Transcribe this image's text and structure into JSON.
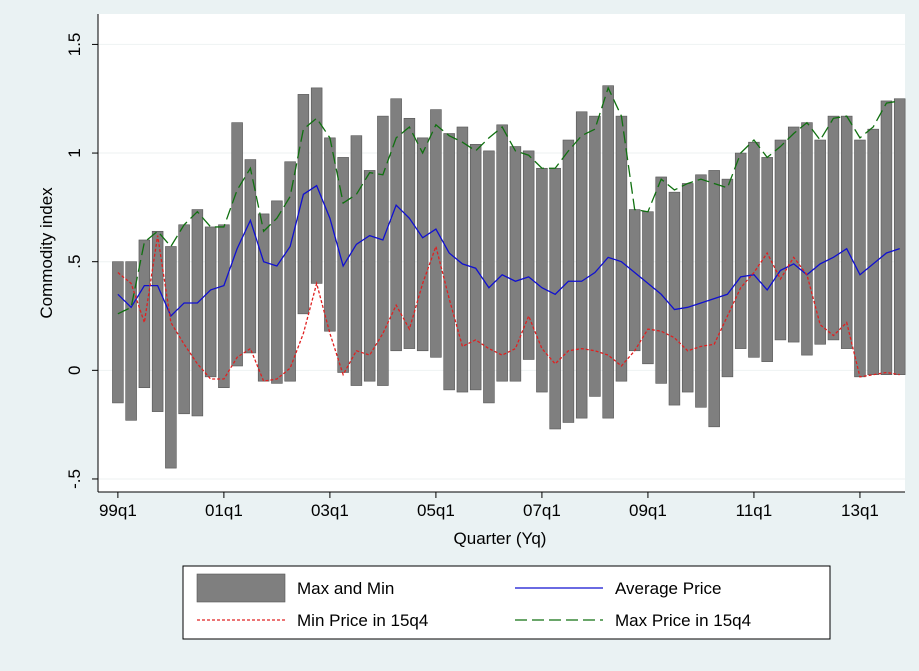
{
  "chart_data": {
    "type": "combo",
    "y_label": "Commodity index",
    "x_label": "Quarter (Yq)",
    "x": [
      156,
      157,
      158,
      159,
      160,
      161,
      162,
      163,
      164,
      165,
      166,
      167,
      168,
      169,
      170,
      171,
      172,
      173,
      174,
      175,
      176,
      177,
      178,
      179,
      180,
      181,
      182,
      183,
      184,
      185,
      186,
      187,
      188,
      189,
      190,
      191,
      192,
      193,
      194,
      195,
      196,
      197,
      198,
      199,
      200,
      201,
      202,
      203,
      204,
      205,
      206,
      207,
      208,
      209,
      210,
      211,
      212,
      213,
      214,
      215
    ],
    "xlim": [
      154.5,
      215.4
    ],
    "xticks": [
      {
        "value": 156,
        "label": "99q1"
      },
      {
        "value": 164,
        "label": "01q1"
      },
      {
        "value": 172,
        "label": "03q1"
      },
      {
        "value": 180,
        "label": "05q1"
      },
      {
        "value": 188,
        "label": "07q1"
      },
      {
        "value": 196,
        "label": "09q1"
      },
      {
        "value": 204,
        "label": "11q1"
      },
      {
        "value": 212,
        "label": "13q1"
      }
    ],
    "ylim": [
      -0.56,
      1.64
    ],
    "yticks": [
      {
        "value": -0.5,
        "label": "-.5"
      },
      0,
      {
        "value": 0.5,
        "label": ".5"
      },
      1,
      1.5
    ],
    "grid": true,
    "series": [
      {
        "name": "Max and Min",
        "type": "rangebar",
        "color": "#7f7f7f",
        "high": [
          0.5,
          0.5,
          0.6,
          0.64,
          0.57,
          0.67,
          0.74,
          0.66,
          0.67,
          1.14,
          0.97,
          0.72,
          0.78,
          0.96,
          1.27,
          1.3,
          1.07,
          0.98,
          1.08,
          0.92,
          1.17,
          1.25,
          1.16,
          1.07,
          1.2,
          1.09,
          1.12,
          1.04,
          1.01,
          1.13,
          1.03,
          1.01,
          0.93,
          0.93,
          1.06,
          1.19,
          1.17,
          1.31,
          1.17,
          0.74,
          0.73,
          0.89,
          0.82,
          0.86,
          0.9,
          0.92,
          0.88,
          1.0,
          1.05,
          0.98,
          1.06,
          1.12,
          1.14,
          1.06,
          1.17,
          1.17,
          1.06,
          1.11,
          1.24,
          1.25
        ],
        "low": [
          -0.15,
          -0.23,
          -0.08,
          -0.19,
          -0.45,
          -0.2,
          -0.21,
          -0.03,
          -0.08,
          0.02,
          0.08,
          -0.05,
          -0.06,
          -0.05,
          0.26,
          0.4,
          0.18,
          -0.01,
          -0.07,
          -0.05,
          -0.07,
          0.09,
          0.1,
          0.09,
          0.06,
          -0.09,
          -0.1,
          -0.09,
          -0.15,
          -0.05,
          -0.05,
          0.05,
          -0.1,
          -0.27,
          -0.24,
          -0.22,
          -0.12,
          -0.22,
          -0.05,
          0.09,
          0.03,
          -0.06,
          -0.16,
          -0.1,
          -0.17,
          -0.26,
          -0.03,
          0.1,
          0.06,
          0.04,
          0.14,
          0.13,
          0.07,
          0.12,
          0.14,
          0.1,
          -0.03,
          -0.02,
          -0.02,
          -0.02
        ]
      },
      {
        "name": "Average Price",
        "type": "line",
        "color": "#1010d0",
        "dash": "none",
        "values": [
          0.35,
          0.29,
          0.39,
          0.39,
          0.25,
          0.31,
          0.31,
          0.37,
          0.39,
          0.56,
          0.69,
          0.5,
          0.48,
          0.57,
          0.81,
          0.85,
          0.7,
          0.48,
          0.58,
          0.62,
          0.6,
          0.76,
          0.7,
          0.61,
          0.65,
          0.54,
          0.49,
          0.47,
          0.38,
          0.44,
          0.41,
          0.43,
          0.38,
          0.35,
          0.41,
          0.41,
          0.45,
          0.52,
          0.5,
          0.45,
          0.4,
          0.35,
          0.28,
          0.29,
          0.31,
          0.33,
          0.35,
          0.43,
          0.44,
          0.37,
          0.46,
          0.49,
          0.44,
          0.49,
          0.52,
          0.56,
          0.44,
          0.49,
          0.54,
          0.56
        ]
      },
      {
        "name": "Min Price in 15q4",
        "type": "line",
        "color": "#e02020",
        "dash": "3 2",
        "values": [
          0.45,
          0.4,
          0.22,
          0.62,
          0.22,
          0.12,
          0.03,
          -0.04,
          -0.04,
          0.06,
          0.1,
          -0.05,
          -0.04,
          0.01,
          0.17,
          0.4,
          0.17,
          -0.02,
          0.09,
          0.07,
          0.17,
          0.3,
          0.19,
          0.4,
          0.57,
          0.33,
          0.11,
          0.14,
          0.1,
          0.07,
          0.1,
          0.25,
          0.1,
          0.03,
          0.09,
          0.1,
          0.09,
          0.07,
          0.02,
          0.09,
          0.19,
          0.18,
          0.15,
          0.09,
          0.11,
          0.12,
          0.25,
          0.38,
          0.45,
          0.54,
          0.42,
          0.52,
          0.44,
          0.21,
          0.16,
          0.22,
          -0.03,
          -0.02,
          -0.01,
          -0.02
        ]
      },
      {
        "name": "Max Price in 15q4",
        "type": "line",
        "color": "#107010",
        "dash": "12 5",
        "values": [
          0.26,
          0.29,
          0.59,
          0.64,
          0.57,
          0.67,
          0.73,
          0.66,
          0.66,
          0.83,
          0.93,
          0.64,
          0.7,
          0.8,
          1.11,
          1.16,
          1.07,
          0.77,
          0.81,
          0.91,
          0.9,
          1.07,
          1.12,
          1.0,
          1.13,
          1.08,
          1.05,
          1.01,
          1.07,
          1.12,
          1.01,
          0.99,
          0.93,
          0.93,
          1.01,
          1.08,
          1.11,
          1.3,
          1.17,
          0.74,
          0.73,
          0.88,
          0.83,
          0.86,
          0.88,
          0.86,
          0.84,
          1.0,
          1.06,
          0.98,
          1.03,
          1.09,
          1.14,
          1.06,
          1.16,
          1.17,
          1.07,
          1.12,
          1.23,
          1.24
        ]
      }
    ]
  }
}
